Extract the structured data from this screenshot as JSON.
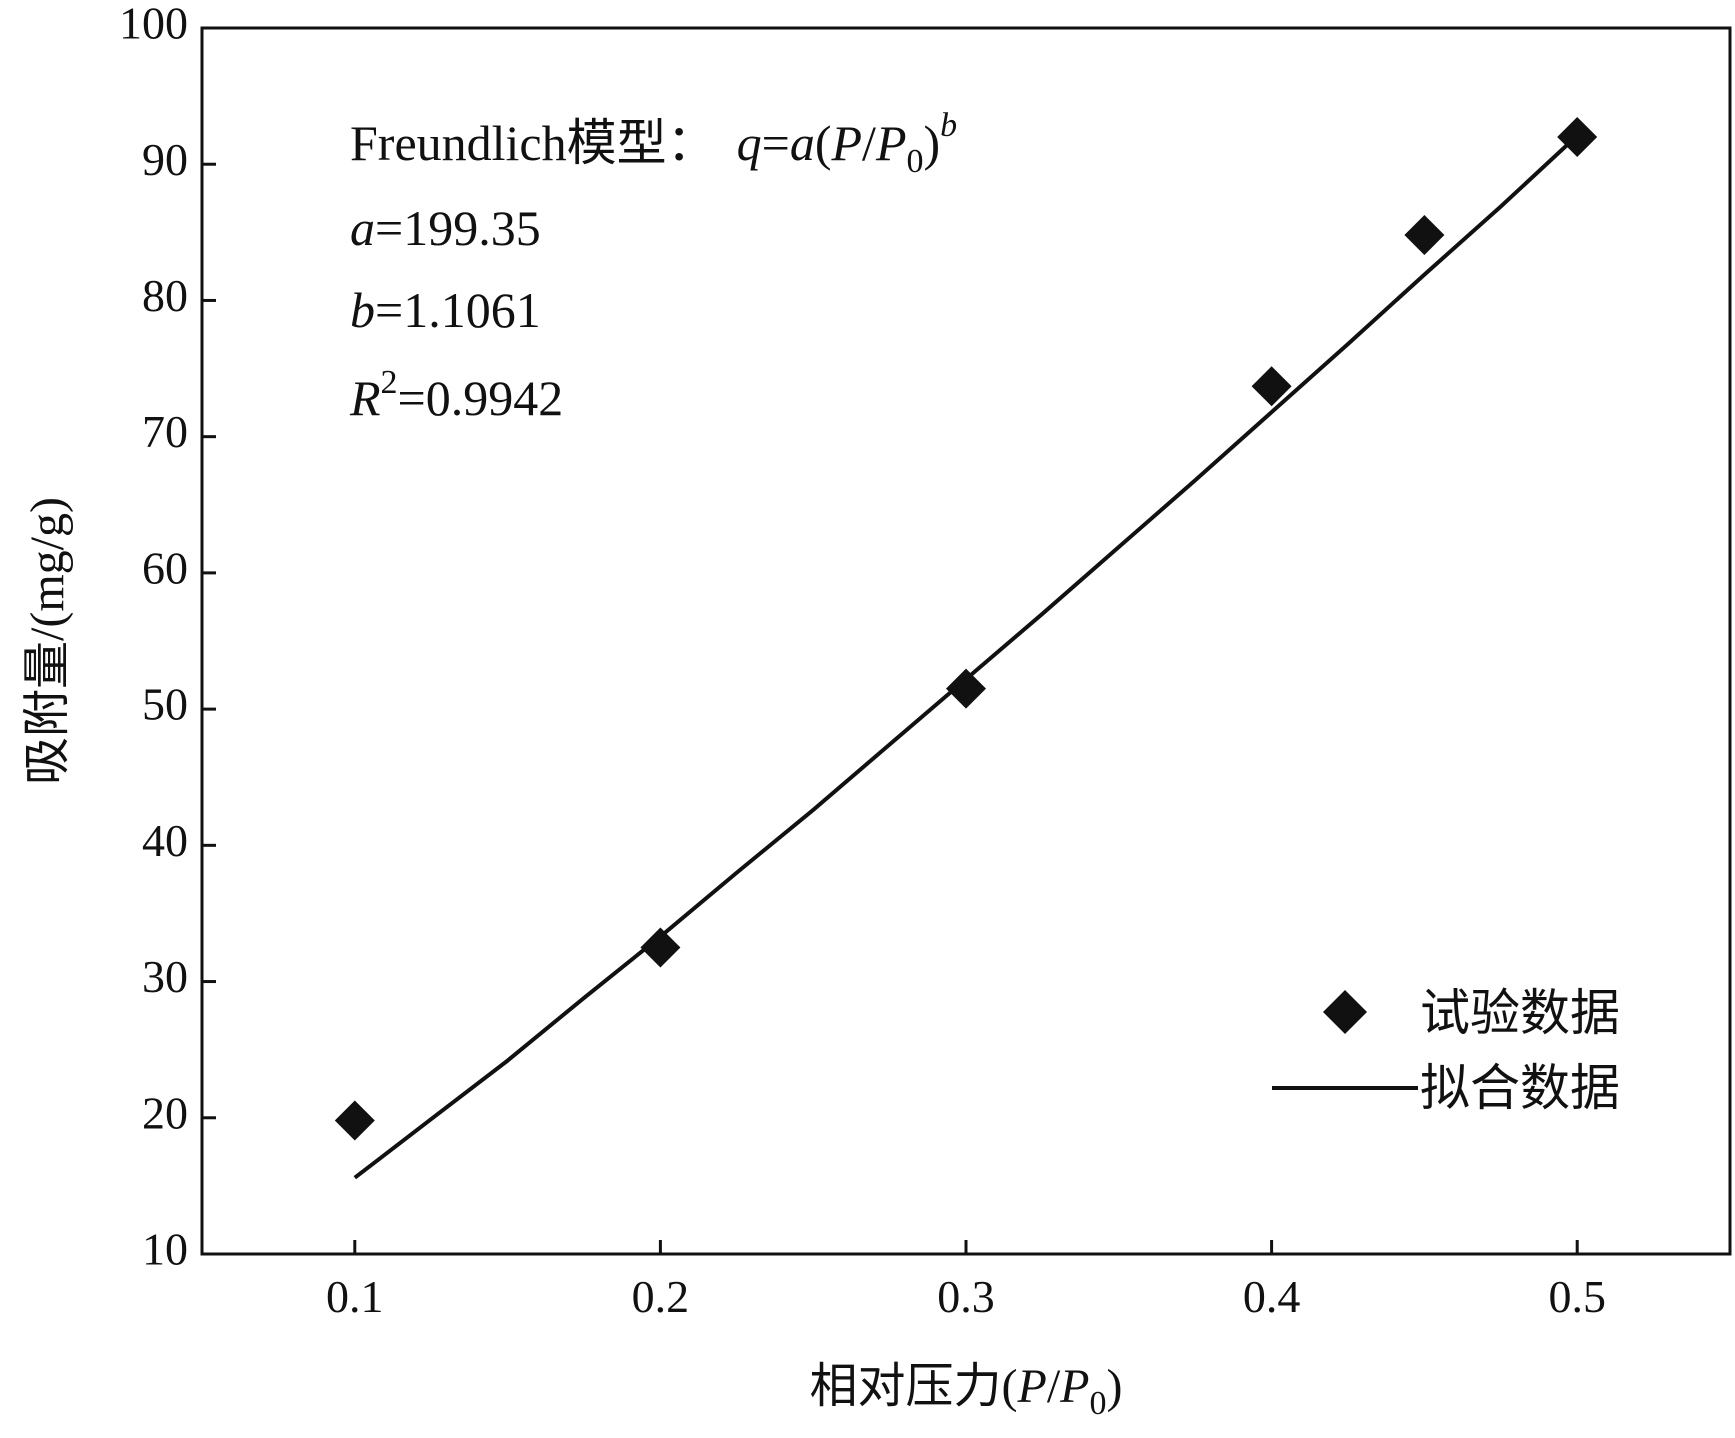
{
  "chart_data": {
    "type": "scatter",
    "title": "",
    "xlabel": {
      "prefix": "相对压力(",
      "var1": "P",
      "slash": "/",
      "var2": "P",
      "sub": "0",
      "suffix": ")"
    },
    "ylabel": "吸附量/(mg/g)",
    "xlim": [
      0.05,
      0.55
    ],
    "ylim": [
      10,
      100
    ],
    "x_ticks": [
      0.1,
      0.2,
      0.3,
      0.4,
      0.5
    ],
    "x_tick_labels": [
      "0.1",
      "0.2",
      "0.3",
      "0.4",
      "0.5"
    ],
    "y_ticks": [
      10,
      20,
      30,
      40,
      50,
      60,
      70,
      80,
      90,
      100
    ],
    "y_tick_labels": [
      "10",
      "20",
      "30",
      "40",
      "50",
      "60",
      "70",
      "80",
      "90",
      "100"
    ],
    "grid": false,
    "legend_position": "bottom-right",
    "series": [
      {
        "name": "试验数据",
        "kind": "scatter",
        "marker": "diamond",
        "color": "#111111",
        "x": [
          0.1,
          0.2,
          0.3,
          0.4,
          0.45,
          0.5
        ],
        "y": [
          19.8,
          32.5,
          51.5,
          73.7,
          84.8,
          92.0
        ]
      },
      {
        "name": "拟合数据",
        "kind": "line",
        "color": "#111111",
        "x": [
          0.1,
          0.125,
          0.15,
          0.175,
          0.2,
          0.225,
          0.25,
          0.275,
          0.3,
          0.325,
          0.35,
          0.375,
          0.4,
          0.425,
          0.45,
          0.475,
          0.5
        ],
        "y": [
          15.6,
          19.9,
          24.2,
          28.8,
          33.3,
          38.0,
          42.6,
          47.4,
          52.2,
          57.0,
          61.9,
          66.8,
          71.8,
          76.8,
          81.9,
          86.9,
          92.1
        ]
      }
    ],
    "annotations": {
      "model_label": "Freundlich模型：",
      "formula": {
        "q": "q",
        "eq1": "=",
        "a": "a",
        "open": "(",
        "P1": "P",
        "slash": "/",
        "P2": "P",
        "sub": "0",
        "close": ")",
        "exp": "b"
      },
      "a_line": {
        "var": "a",
        "value": "=199.35"
      },
      "b_line": {
        "var": "b",
        "value": "=1.1061"
      },
      "r_line": {
        "var": "R",
        "sup": "2",
        "value": "=0.9942"
      }
    }
  }
}
